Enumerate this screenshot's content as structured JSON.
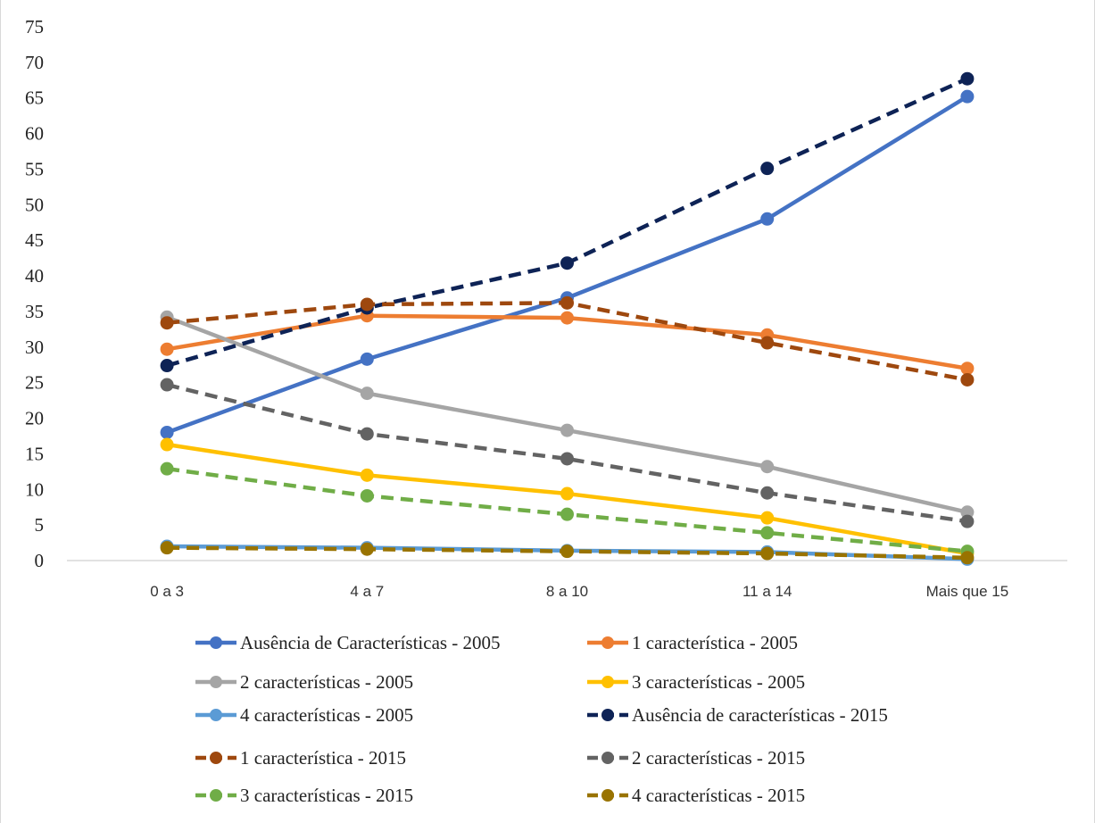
{
  "chart_data": {
    "type": "line",
    "title": "",
    "xlabel": "",
    "ylabel": "",
    "categories": [
      "0 a 3",
      "4 a 7",
      "8 a 10",
      "11 a 14",
      "Mais que 15"
    ],
    "ylim": [
      0,
      75
    ],
    "yticks": [
      0,
      5,
      10,
      15,
      20,
      25,
      30,
      35,
      40,
      45,
      50,
      55,
      60,
      65,
      70,
      75
    ],
    "grid": false,
    "legend_position": "bottom",
    "series": [
      {
        "name": "Ausência de Características - 2005",
        "color": "#4472C4",
        "dash": false,
        "values": [
          18.0,
          28.3,
          36.9,
          48.0,
          65.2
        ]
      },
      {
        "name": "1 característica - 2005",
        "color": "#ED7D31",
        "dash": false,
        "values": [
          29.7,
          34.4,
          34.1,
          31.7,
          27.0
        ]
      },
      {
        "name": "2 características - 2005",
        "color": "#A5A5A5",
        "dash": false,
        "values": [
          34.2,
          23.5,
          18.3,
          13.2,
          6.8
        ]
      },
      {
        "name": "3 características - 2005",
        "color": "#FFC000",
        "dash": false,
        "values": [
          16.3,
          12.0,
          9.4,
          6.0,
          1.0
        ]
      },
      {
        "name": "4 características - 2005",
        "color": "#5B9BD5",
        "dash": false,
        "values": [
          2.0,
          1.8,
          1.4,
          1.2,
          0.2
        ]
      },
      {
        "name": "Ausência de características - 2015",
        "color": "#0E2356",
        "dash": true,
        "values": [
          27.4,
          35.5,
          41.8,
          55.1,
          67.7
        ]
      },
      {
        "name": "1 característica - 2015",
        "color": "#9E480E",
        "dash": true,
        "values": [
          33.4,
          36.0,
          36.2,
          30.6,
          25.4
        ]
      },
      {
        "name": "2 características - 2015",
        "color": "#636363",
        "dash": true,
        "values": [
          24.7,
          17.8,
          14.3,
          9.5,
          5.5
        ]
      },
      {
        "name": "3 características - 2015",
        "color": "#70AD47",
        "dash": true,
        "values": [
          12.9,
          9.1,
          6.5,
          3.9,
          1.3
        ]
      },
      {
        "name": "4 características - 2015",
        "color": "#997300",
        "dash": true,
        "values": [
          1.8,
          1.6,
          1.3,
          1.0,
          0.4
        ]
      }
    ]
  }
}
